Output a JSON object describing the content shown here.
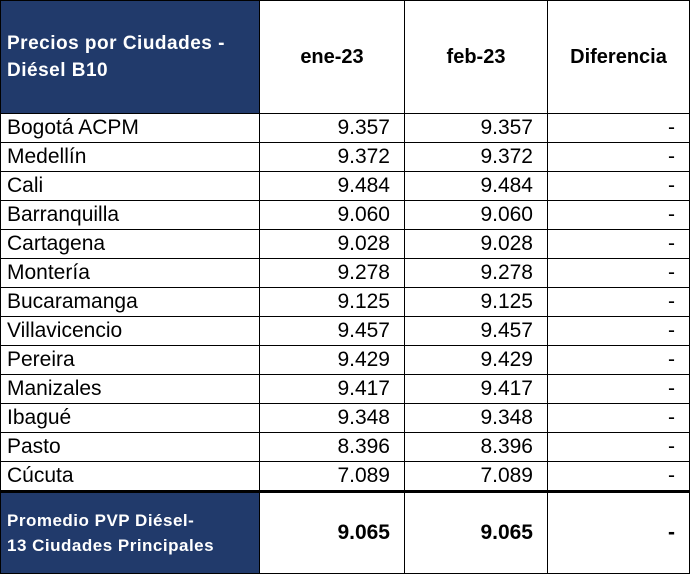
{
  "header": {
    "corner_line1": "Precios por Ciudades -",
    "corner_line2": "Diésel B10",
    "col1": "ene-23",
    "col2": "feb-23",
    "col3": "Diferencia"
  },
  "rows": [
    {
      "city": "Bogotá ACPM",
      "ene": "9.357",
      "feb": "9.357",
      "diff": "-"
    },
    {
      "city": "Medellín",
      "ene": "9.372",
      "feb": "9.372",
      "diff": "-"
    },
    {
      "city": "Cali",
      "ene": "9.484",
      "feb": "9.484",
      "diff": "-"
    },
    {
      "city": "Barranquilla",
      "ene": "9.060",
      "feb": "9.060",
      "diff": "-"
    },
    {
      "city": "Cartagena",
      "ene": "9.028",
      "feb": "9.028",
      "diff": "-"
    },
    {
      "city": "Montería",
      "ene": "9.278",
      "feb": "9.278",
      "diff": "-"
    },
    {
      "city": "Bucaramanga",
      "ene": "9.125",
      "feb": "9.125",
      "diff": "-"
    },
    {
      "city": "Villavicencio",
      "ene": "9.457",
      "feb": "9.457",
      "diff": "-"
    },
    {
      "city": "Pereira",
      "ene": "9.429",
      "feb": "9.429",
      "diff": "-"
    },
    {
      "city": "Manizales",
      "ene": "9.417",
      "feb": "9.417",
      "diff": "-"
    },
    {
      "city": "Ibagué",
      "ene": "9.348",
      "feb": "9.348",
      "diff": "-"
    },
    {
      "city": "Pasto",
      "ene": "8.396",
      "feb": "8.396",
      "diff": "-"
    },
    {
      "city": "Cúcuta",
      "ene": "7.089",
      "feb": "7.089",
      "diff": "-"
    }
  ],
  "footer": {
    "label_line1": "Promedio PVP Diésel-",
    "label_line2": "13 Ciudades Principales",
    "ene": "9.065",
    "feb": "9.065",
    "diff": "-"
  },
  "colors": {
    "header_bg": "#213a6b",
    "header_text": "#ffffff",
    "grid": "#000000"
  }
}
